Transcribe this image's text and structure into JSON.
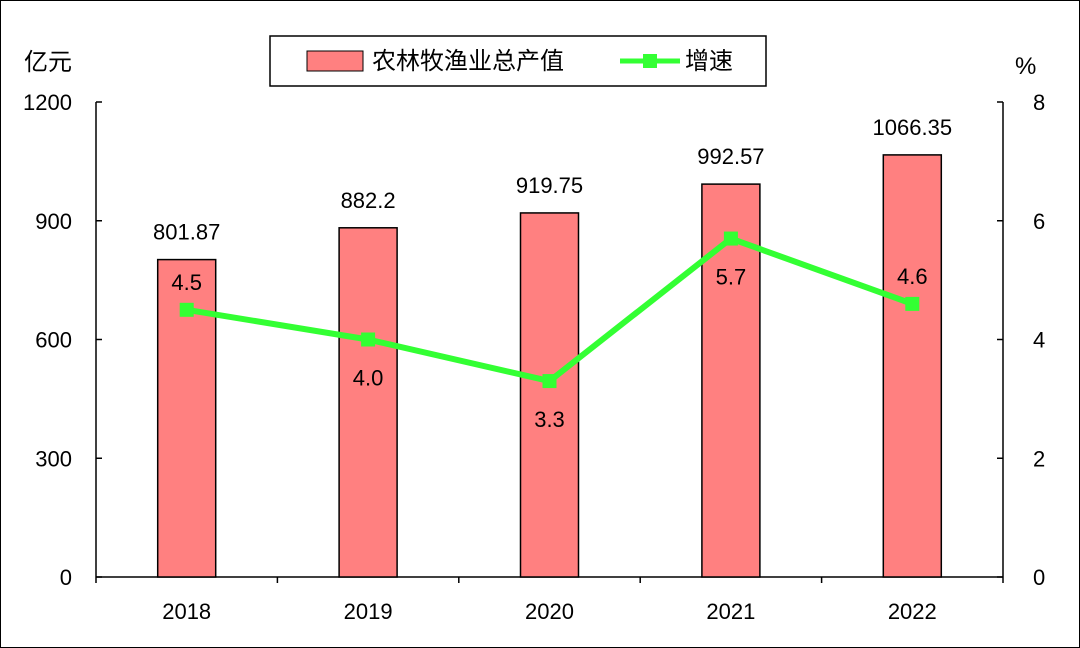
{
  "chart_data": {
    "type": "bar",
    "categories": [
      "2018",
      "2019",
      "2020",
      "2021",
      "2022"
    ],
    "series": [
      {
        "name": "农林牧渔业总产值",
        "type": "bar",
        "axis": "left",
        "values": [
          801.87,
          882.2,
          919.75,
          992.57,
          1066.35
        ],
        "labels": [
          "801.87",
          "882.2",
          "919.75",
          "992.57",
          "1066.35"
        ]
      },
      {
        "name": "增速",
        "type": "line",
        "axis": "right",
        "values": [
          4.5,
          4.0,
          3.3,
          5.7,
          4.6
        ],
        "labels": [
          "4.5",
          "4.0",
          "3.3",
          "5.7",
          "4.6"
        ]
      }
    ],
    "y_left": {
      "unit": "亿元",
      "ticks": [
        "0",
        "300",
        "600",
        "900",
        "1200"
      ],
      "ylim": [
        0,
        1200
      ]
    },
    "y_right": {
      "unit": "%",
      "ticks": [
        "0",
        "2",
        "4",
        "6",
        "8"
      ],
      "ylim": [
        0,
        8
      ]
    },
    "legend_position": "top-center",
    "grid": false,
    "colors": {
      "bar_fill": "#FF8080",
      "bar_stroke": "#000000",
      "line": "#33FF33",
      "marker": "#33FF33"
    }
  }
}
